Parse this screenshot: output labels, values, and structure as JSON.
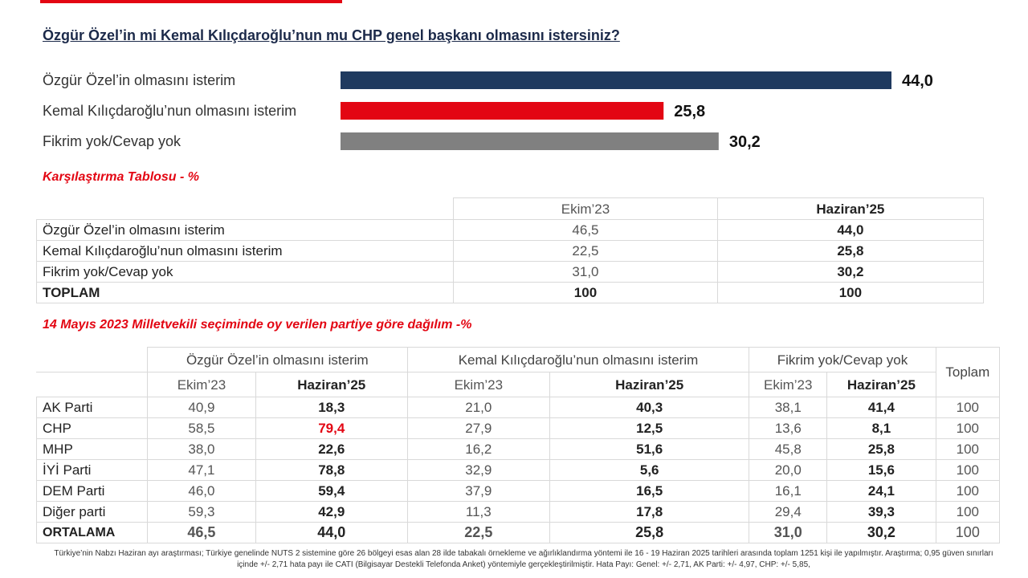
{
  "question": "Özgür Özel’in mi Kemal Kılıçdaroğlu’nun mu CHP genel başkanı olmasını istersiniz?",
  "colors": {
    "ozel": "#1f3a5f",
    "kilicdaroglu": "#e30613",
    "none": "#808080",
    "accent": "#e30613"
  },
  "chart_data": {
    "type": "bar",
    "orientation": "horizontal",
    "categories": [
      "Özgür Özel’in olmasını isterim",
      "Kemal Kılıçdaroğlu’nun olmasını isterim",
      "Fikrim yok/Cevap yok"
    ],
    "values": [
      44.0,
      25.8,
      30.2
    ],
    "value_labels": [
      "44,0",
      "25,8",
      "30,2"
    ],
    "colors": [
      "#1f3a5f",
      "#e30613",
      "#808080"
    ],
    "xlim": [
      0,
      44
    ]
  },
  "comparison": {
    "title": "Karşılaştırma Tablosu - %",
    "headers": [
      "Ekim’23",
      "Haziran’25"
    ],
    "rows": [
      {
        "label": "Özgür Özel’in olmasını isterim",
        "v1": "46,5",
        "v2": "44,0"
      },
      {
        "label": "Kemal Kılıçdaroğlu’nun olmasını isterim",
        "v1": "22,5",
        "v2": "25,8"
      },
      {
        "label": "Fikrim yok/Cevap yok",
        "v1": "31,0",
        "v2": "30,2"
      },
      {
        "label": "TOPLAM",
        "v1": "100",
        "v2": "100"
      }
    ]
  },
  "party": {
    "title": "14 Mayıs 2023 Milletvekili seçiminde oy verilen partiye göre dağılım -%",
    "groups": [
      "Özgür Özel’in olmasını isterim",
      "Kemal Kılıçdaroğlu’nun olmasını isterim",
      "Fikrim yok/Cevap yok"
    ],
    "total_header": "Toplam",
    "sub": [
      "Ekim’23",
      "Haziran’25"
    ],
    "rows": [
      {
        "party": "AK Parti",
        "vals": [
          "40,9",
          "18,3",
          "21,0",
          "40,3",
          "38,1",
          "41,4"
        ],
        "total": "100"
      },
      {
        "party": "CHP",
        "vals": [
          "58,5",
          "79,4",
          "27,9",
          "12,5",
          "13,6",
          "8,1"
        ],
        "total": "100"
      },
      {
        "party": "MHP",
        "vals": [
          "38,0",
          "22,6",
          "16,2",
          "51,6",
          "45,8",
          "25,8"
        ],
        "total": "100"
      },
      {
        "party": "İYİ Parti",
        "vals": [
          "47,1",
          "78,8",
          "32,9",
          "5,6",
          "20,0",
          "15,6"
        ],
        "total": "100"
      },
      {
        "party": "DEM Parti",
        "vals": [
          "46,0",
          "59,4",
          "37,9",
          "16,5",
          "16,1",
          "24,1"
        ],
        "total": "100"
      },
      {
        "party": "Diğer parti",
        "vals": [
          "59,3",
          "42,9",
          "11,3",
          "17,8",
          "29,4",
          "39,3"
        ],
        "total": "100"
      },
      {
        "party": "ORTALAMA",
        "vals": [
          "46,5",
          "44,0",
          "22,5",
          "25,8",
          "31,0",
          "30,2"
        ],
        "total": "100"
      }
    ]
  },
  "footnote": "Türkiye’nin Nabzı Haziran ayı araştırması; Türkiye genelinde NUTS 2 sistemine göre 26 bölgeyi esas alan 28 ilde tabakalı örnekleme ve ağırlıklandırma yöntemi ile 16 - 19 Haziran 2025 tarihleri arasında toplam 1251 kişi ile yapılmıştır. Araştırma; 0,95 güven sınırları içinde +/- 2,71 hata payı ile CATI (Bilgisayar Destekli Telefonda Anket) yöntemiyle gerçekleştirilmiştir. Hata Payı: Genel: +/- 2,71, AK Parti: +/- 4,97, CHP: +/- 5,85,"
}
